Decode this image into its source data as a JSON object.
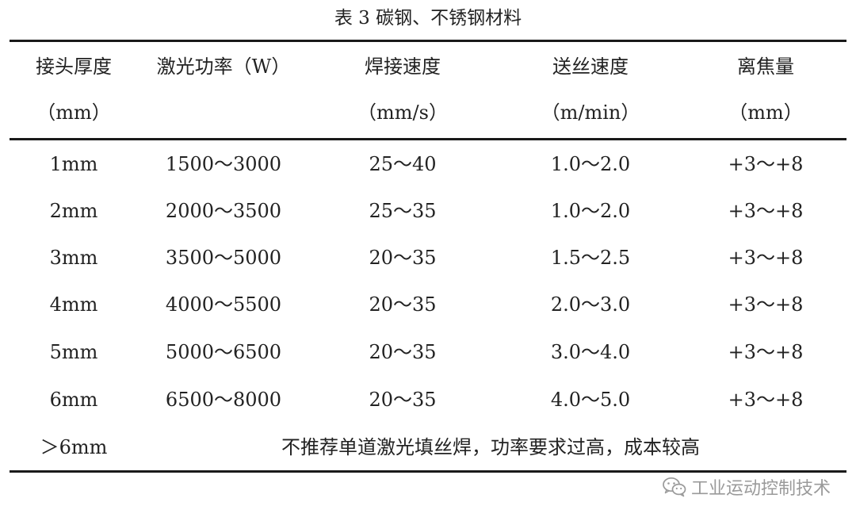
{
  "table": {
    "caption": "表 3  碳钢、不锈钢材料",
    "headers": [
      {
        "title": "接头厚度",
        "unit": "（mm）"
      },
      {
        "title": "激光功率（W）",
        "unit": ""
      },
      {
        "title": "焊接速度",
        "unit": "（mm/s）"
      },
      {
        "title": "送丝速度",
        "unit": "（m/min）"
      },
      {
        "title": "离焦量",
        "unit": "（mm）"
      }
    ],
    "rows": [
      [
        "1mm",
        "1500～3000",
        "25～40",
        "1.0～2.0",
        "+3～+8"
      ],
      [
        "2mm",
        "2000～3500",
        "25～35",
        "1.0～2.0",
        "+3～+8"
      ],
      [
        "3mm",
        "3500～5000",
        "20～35",
        "1.5～2.5",
        "+3～+8"
      ],
      [
        "4mm",
        "4000～5500",
        "20～35",
        "2.0～3.0",
        "+3～+8"
      ],
      [
        "5mm",
        "5000～6500",
        "20～35",
        "3.0～4.0",
        "+3～+8"
      ],
      [
        "6mm",
        "6500～8000",
        "20～35",
        "4.0～5.0",
        "+3～+8"
      ]
    ],
    "last_row": {
      "thickness": "＞6mm",
      "note": "不推荐单道激光填丝焊，功率要求过高，成本较高"
    }
  },
  "watermark": {
    "icon": "wechat-icon",
    "text": "工业运动控制技术"
  }
}
